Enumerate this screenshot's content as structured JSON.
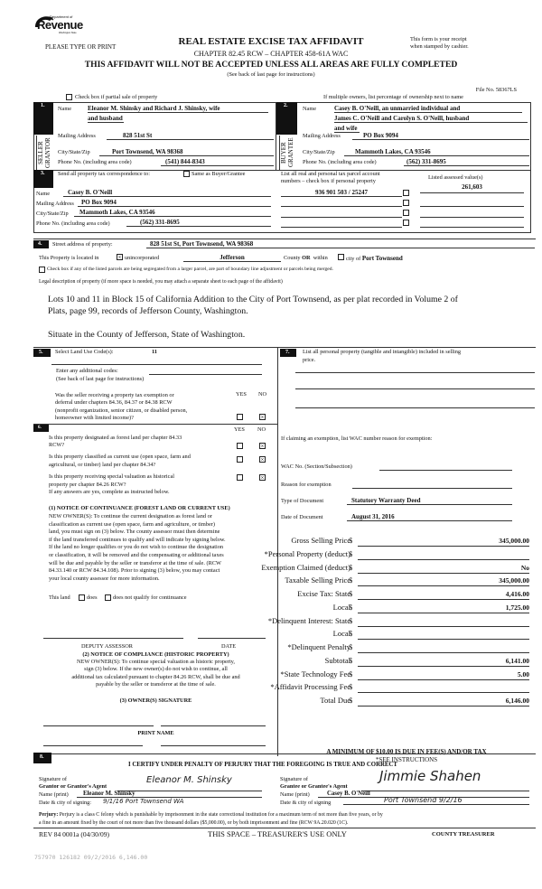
{
  "header": {
    "logo": {
      "line1": "Department of",
      "word": "Revenue",
      "line3": "Washington State"
    },
    "please_type": "PLEASE TYPE OR PRINT",
    "title": "REAL ESTATE EXCISE TAX AFFIDAVIT",
    "chapter": "CHAPTER 82.45 RCW – CHAPTER 458-61A WAC",
    "warning": "THIS AFFIDAVIT WILL NOT BE ACCEPTED UNLESS ALL AREAS ARE FULLY COMPLETED",
    "see_back": "(See back of last page for instructions)",
    "receipt_line1": "This form is your receipt",
    "receipt_line2": "when stamped by cashier.",
    "file_no": "File No. 58367LS",
    "partial_sale": "Check box if partial sale of property",
    "multiple_owners": "If multiple owners, list percentage of ownership next to name"
  },
  "seller": {
    "number": "1.",
    "side_label1": "SELLER",
    "side_label2": "GRANTOR",
    "name_label": "Name",
    "name_line1": "Eleanor M. Shinsky and Richard J. Shinsky, wife",
    "name_line2": "and husband",
    "mailing_label": "Mailing Address",
    "mailing": "828 51st St",
    "city_label": "City/State/Zip",
    "city": "Port Townsend, WA 98368",
    "phone_label": "Phone No. (including area code)",
    "phone": "(541) 844-8343"
  },
  "buyer": {
    "number": "2.",
    "side_label1": "BUYER",
    "side_label2": "GRANTEE",
    "name_label": "Name",
    "name_line1": "Casey B. O'Neill, an unmarried individual and",
    "name_line2": "James C. O'Neill and Carolyn S. O'Neill, husband",
    "name_line3": "and wife",
    "mailing_label": "Mailing Address",
    "mailing": "PO Box 9094",
    "city_label": "City/State/Zip",
    "city": "Mammoth Lakes, CA 93546",
    "phone_label": "Phone No. (including area code)",
    "phone": "(562) 331-8695"
  },
  "correspondence": {
    "number": "3.",
    "label": "Send all property tax correspondence to:",
    "same_as": "Same as Buyer/Grantee",
    "name_label": "Name",
    "name": "Casey B. O'Neill",
    "mailing_label": "Mailing Address",
    "mailing": "PO Box 9094",
    "city_label": "City/State/Zip",
    "city": "Mammoth Lakes, CA 93546",
    "phone_label": "Phone No. (including area code)",
    "phone": "(562) 331-8695",
    "parcel_label1": "List all real and personal tax parcel account",
    "parcel_label2": "numbers – check box if personal property",
    "assessed_label": "Listed assessed value(s)",
    "parcel": "936 901 503 / 25247",
    "assessed": "261,603"
  },
  "property": {
    "number": "4.",
    "street_label": "Street address of property:",
    "street": "828 51st St, Port Townsend, WA  98368",
    "located_label": "This Property is located in",
    "unincorporated": "unincorporated",
    "county": "Jefferson",
    "county_or": "County",
    "or": "OR",
    "within": "within",
    "city_of": "city of",
    "city": "Port Townsend",
    "segregated": "Check box if any of the listed parcels are being segregated from a larger parcel, are part of boundary line adjustment or parcels being merged.",
    "legal_label": "Legal description of property (if more space is needed, you may attach a separate sheet to each page of the affidavit)",
    "legal_line1": "Lots 10 and 11 in Block 15 of California Addition to the City of Port Townsend, as per plat recorded in Volume 2 of",
    "legal_line2": "Plats, page 99, records of Jefferson County, Washington.",
    "legal_line3": "Situate in the County of Jefferson, State of Washington."
  },
  "land_use": {
    "number": "5.",
    "label": "Select Land Use Code(s):",
    "code": "11",
    "additional": "Enter any additional codes:",
    "see_back": "(See back of last page for instructions)",
    "yes": "YES",
    "no": "NO",
    "exemption_q1": "Was the seller receiving a property tax exemption or",
    "exemption_q2": "deferral under chapters 84.36, 84.37 or 84.38 RCW",
    "exemption_q3": "(nonprofit organization, senior citizen, or disabled person,",
    "exemption_q4": "homeowner with limited income)?"
  },
  "section6": {
    "number": "6.",
    "yes": "YES",
    "no": "NO",
    "q1a": "Is this property designated as forest land per chapter 84.33",
    "q1b": "RCW?",
    "q2a": "Is this property classified as current use (open space, farm and",
    "q2b": "agricultural, or timber) land per chapter 84.34?",
    "q3a": "Is this property receiving special valuation as historical",
    "q3b": "property per chapter 84.26 RCW?",
    "if_yes": "If any answers are yes, complete as instructed below.",
    "notice1_title": "(1) NOTICE OF CONTINUANCE (FOREST LAND OR CURRENT USE)",
    "notice1_lines": [
      "NEW OWNER(S): To continue the current designation as forest land or",
      "classification as current use (open space, farm and agriculture, or timber)",
      "land, you must sign on (3) below.  The county assessor must then determine",
      "if the land transferred continues to qualify and will indicate by signing below.",
      "If the land no longer qualifies or you do not wish to continue the designation",
      "or classification, it will be removed and the compensating or additional taxes",
      "will be due and payable by the seller or transferor at the time of sale.  (RCW",
      "84.33.140 or RCW 84.34.108). Prior to signing (3) below, you may contact",
      "your local county assessor for more information."
    ],
    "this_land": "This land",
    "does": "does",
    "does_not": "does not  qualify for continuance",
    "deputy": "DEPUTY ASSESSOR",
    "date": "DATE",
    "notice2_title": "(2) NOTICE OF COMPLIANCE (HISTORIC PROPERTY)",
    "notice2_lines": [
      "NEW OWNER(S):  To continue special valuation as historic property,",
      "sign (3) below.  If the new owner(s) do not wish to continue, all",
      "additional tax calculated pursuant to chapter 84.26 RCW, shall be due and",
      "payable by the seller or transferor at the time of sale."
    ],
    "owner_sig": "(3)  OWNER(S) SIGNATURE",
    "print_name": "PRINT NAME"
  },
  "section7": {
    "number": "7.",
    "label1": "List all personal property (tangible and intangible) included in selling",
    "label2": "price.",
    "exemption_label": "If claiming an exemption, list WAC number reason for exemption:",
    "wac_label": "WAC No. (Section/Subsection)",
    "reason_label": "Reason for exemption",
    "doc_type_label": "Type of Document",
    "doc_type": "Statutory Warranty Deed",
    "doc_date_label": "Date of Document",
    "doc_date": "August 31, 2016",
    "currency": "$",
    "tax_rows": [
      {
        "label": "Gross Selling Price",
        "value": "345,000.00"
      },
      {
        "label": "*Personal Property (deduct)",
        "value": ""
      },
      {
        "label": "Exemption Claimed (deduct)",
        "value": "No"
      },
      {
        "label": "Taxable Selling Price",
        "value": "345,000.00"
      },
      {
        "label": "Excise Tax:  State",
        "value": "4,416.00"
      },
      {
        "label": "Local",
        "value": "1,725.00"
      },
      {
        "label": "*Delinquent Interest:  State",
        "value": ""
      },
      {
        "label": "Local",
        "value": ""
      },
      {
        "label": "*Delinquent Penalty",
        "value": ""
      },
      {
        "label": "Subtotal",
        "value": "6,141.00"
      },
      {
        "label": "*State Technology Fee",
        "value": "5.00"
      },
      {
        "label": "*Affidavit Processing Fee",
        "value": ""
      },
      {
        "label": "Total Due",
        "value": "6,146.00"
      }
    ],
    "minimum": "A MINIMUM OF $10.00 IS DUE IN FEE(S) AND/OR TAX",
    "see_instructions": "*SEE INSTRUCTIONS"
  },
  "section8": {
    "number": "8.",
    "certify": "I CERTIFY UNDER PENALTY OF PERJURY THAT THE FOREGOING IS TRUE AND CORRECT",
    "grantor_sig_label1": "Signature of",
    "grantor_sig_label2": "Grantor or Grantor's Agent",
    "grantor_name_label": "Name (print)",
    "grantor_name": "Eleanor M. Shinsky",
    "grantor_date_label": "Date & city of signing:",
    "grantor_date": "9/1/16   Port Townsend  WA",
    "grantee_sig_label1": "Signature of",
    "grantee_sig_label2": "Grantee or Grantee's Agent",
    "grantee_name_label": "Name (print)",
    "grantee_name": "Casey B. O'Neill",
    "grantee_date_label": "Date & city of signing",
    "grantee_date": "Port  Townsend   9/2/16",
    "grantor_signature": "Eleanor M. Shinsky",
    "grantee_signature": "Jimmie Shahen",
    "perjury_label": "Perjury:",
    "perjury_line1": "Perjury is a class C felony which is punishable by imprisonment in the state correctional institution for a maximum term of not more than five years, or by",
    "perjury_line2": "a fine in an amount fixed by the court of not more than five thousand dollars ($5,000.00), or by both imprisonment and fine (RCW 9A.20.020 (1C)."
  },
  "footer": {
    "rev": "REV 84 0001a (04/30/09)",
    "treasurer_space": "THIS SPACE – TREASURER'S USE ONLY",
    "county_treasurer": "COUNTY TREASURER",
    "stamp": "757970 126182 09/2/2016 6,146.00"
  }
}
